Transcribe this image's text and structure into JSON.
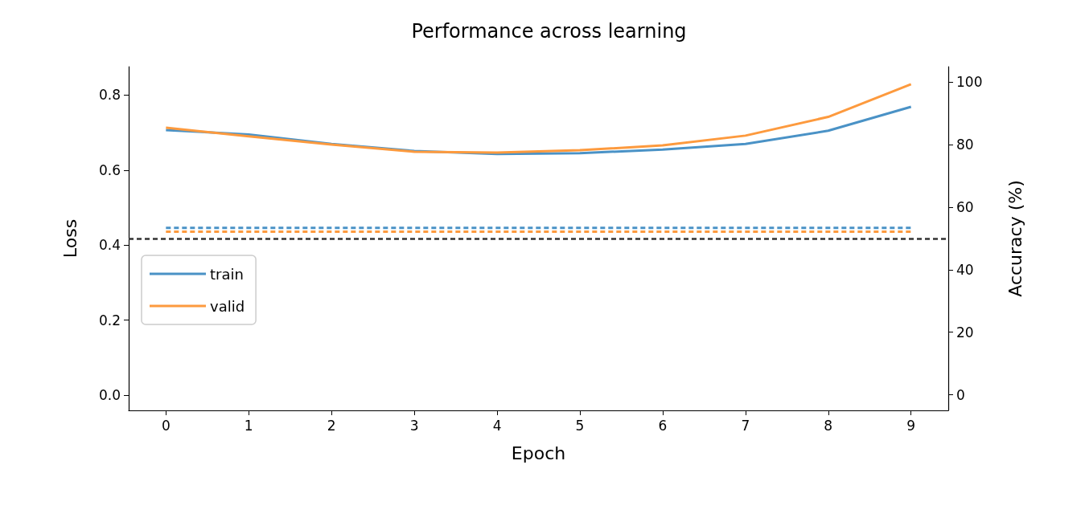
{
  "chart_data": {
    "type": "line",
    "title": "Performance across learning",
    "xlabel": "Epoch",
    "ylabel": "Loss",
    "y2label": "Accuracy (%)",
    "x": [
      0,
      1,
      2,
      3,
      4,
      5,
      6,
      7,
      8,
      9
    ],
    "series": [
      {
        "name": "train",
        "color": "#4a92c6",
        "line_style": "solid",
        "values": [
          0.707,
          0.695,
          0.67,
          0.651,
          0.643,
          0.645,
          0.655,
          0.67,
          0.705,
          0.769
        ]
      },
      {
        "name": "valid",
        "color": "#fd9a3e",
        "line_style": "solid",
        "values": [
          0.713,
          0.69,
          0.668,
          0.649,
          0.647,
          0.653,
          0.666,
          0.692,
          0.742,
          0.829
        ]
      },
      {
        "color": "#4a92c6",
        "line_style": "dashed",
        "axis": "y2",
        "values": [
          53.4,
          53.4,
          53.4,
          53.4,
          53.4,
          53.4,
          53.4,
          53.4,
          53.4,
          53.4
        ]
      },
      {
        "color": "#fd9a3e",
        "line_style": "dashed",
        "axis": "y2",
        "values": [
          52.2,
          52.2,
          52.2,
          52.2,
          52.2,
          52.2,
          52.2,
          52.2,
          52.2,
          52.2
        ]
      }
    ],
    "xlim": [
      -0.45,
      9.45
    ],
    "xticks": [
      0,
      1,
      2,
      3,
      4,
      5,
      6,
      7,
      8,
      9
    ],
    "ylim": [
      -0.041,
      0.876
    ],
    "yticks": [
      {
        "value": 0,
        "label": "0.0"
      },
      0.2,
      0.4,
      0.6,
      0.8
    ],
    "y2lim": [
      -5,
      105
    ],
    "y2ticks": [
      0,
      20,
      40,
      60,
      80,
      100
    ],
    "ref_lines": [
      {
        "axis": "y2",
        "value": 50,
        "color": "#333333",
        "line_style": "dashed"
      }
    ],
    "grid": false,
    "legend": "left",
    "marker": "none"
  }
}
